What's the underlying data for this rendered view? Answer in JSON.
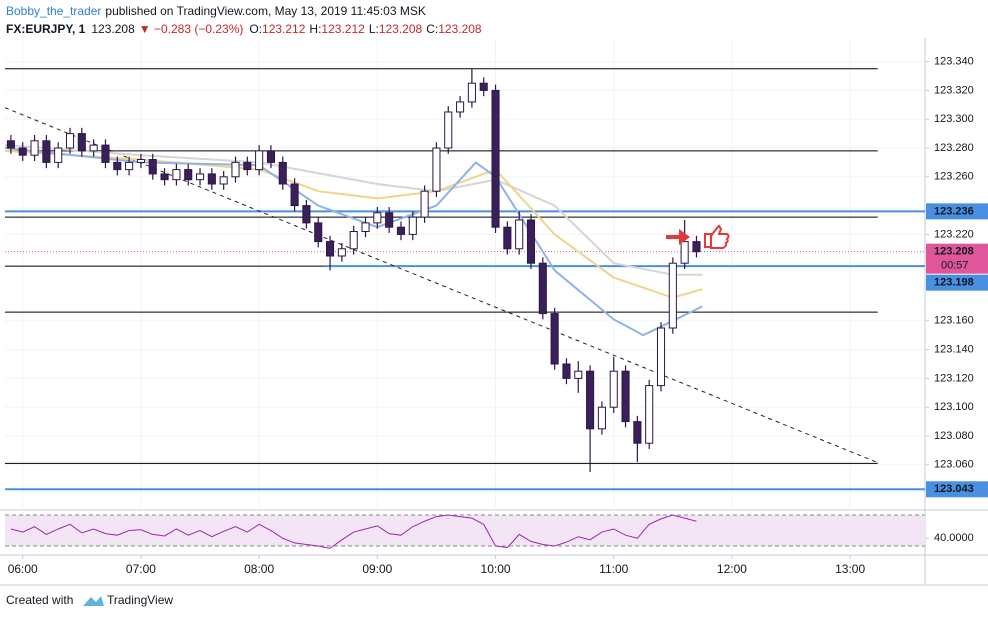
{
  "chart_data": {
    "type": "candlestick",
    "author": "Bobby_the_trader",
    "title": "published on TradingView.com, May 13, 2019 11:45:03 MSK",
    "symbol": "FX:EURJPY, 1",
    "last": 123.208,
    "change": "▼ −0.283 (−0.23%)",
    "ohlc_labels": [
      {
        "label": "O:",
        "value": 123.212
      },
      {
        "label": "H:",
        "value": 123.212
      },
      {
        "label": "L:",
        "value": 123.208
      },
      {
        "label": "C:",
        "value": 123.208
      }
    ],
    "up_color": "#ffffff",
    "down_color": "#3b1f5a",
    "x": [
      354,
      360,
      366,
      372,
      378,
      384,
      390,
      396,
      402,
      408,
      414,
      420,
      426,
      432,
      438,
      444,
      450,
      456,
      462,
      468,
      474,
      480,
      486,
      492,
      498,
      504,
      510,
      516,
      522,
      528,
      534,
      540,
      546,
      552,
      558,
      564,
      570,
      576,
      582,
      588,
      594,
      600,
      606,
      612,
      618,
      624,
      630,
      636,
      642,
      648,
      654,
      660,
      666,
      672,
      678,
      684,
      690,
      696,
      702
    ],
    "open": [
      123.285,
      123.28,
      123.275,
      123.285,
      123.27,
      123.28,
      123.29,
      123.278,
      123.282,
      123.27,
      123.265,
      123.27,
      123.272,
      123.262,
      123.258,
      123.265,
      123.258,
      123.262,
      123.255,
      123.26,
      123.27,
      123.265,
      123.278,
      123.27,
      123.255,
      123.24,
      123.228,
      123.215,
      123.205,
      123.21,
      123.222,
      123.228,
      123.235,
      123.225,
      123.22,
      123.232,
      123.25,
      123.28,
      123.305,
      123.312,
      123.325,
      123.32,
      123.225,
      123.21,
      123.23,
      123.2,
      123.165,
      123.13,
      123.12,
      123.125,
      123.085,
      123.1,
      123.125,
      123.09,
      123.075,
      123.115,
      123.155,
      123.2,
      123.215
    ],
    "high": [
      123.289,
      123.284,
      123.289,
      123.289,
      123.284,
      123.294,
      123.294,
      123.286,
      123.286,
      123.274,
      123.274,
      123.276,
      123.276,
      123.266,
      123.269,
      123.269,
      123.266,
      123.266,
      123.264,
      123.274,
      123.274,
      123.282,
      123.282,
      123.274,
      123.259,
      123.244,
      123.232,
      123.219,
      123.214,
      123.226,
      123.232,
      123.239,
      123.239,
      123.229,
      123.236,
      123.254,
      123.284,
      123.309,
      123.316,
      123.335,
      123.329,
      123.324,
      123.229,
      123.236,
      123.234,
      123.204,
      123.169,
      123.134,
      123.132,
      123.129,
      123.104,
      123.135,
      123.129,
      123.094,
      123.119,
      123.159,
      123.204,
      123.23,
      123.219
    ],
    "low": [
      123.276,
      123.271,
      123.271,
      123.266,
      123.266,
      123.276,
      123.274,
      123.274,
      123.266,
      123.261,
      123.261,
      123.266,
      123.258,
      123.254,
      123.254,
      123.254,
      123.254,
      123.251,
      123.251,
      123.256,
      123.261,
      123.261,
      123.266,
      123.251,
      123.236,
      123.224,
      123.211,
      123.195,
      123.201,
      123.206,
      123.218,
      123.224,
      123.221,
      123.216,
      123.216,
      123.228,
      123.246,
      123.276,
      123.301,
      123.308,
      123.316,
      123.221,
      123.206,
      123.206,
      123.196,
      123.161,
      123.126,
      123.116,
      123.11,
      123.055,
      123.081,
      123.096,
      123.086,
      123.062,
      123.071,
      123.111,
      123.151,
      123.196,
      123.204
    ],
    "close": [
      123.28,
      123.275,
      123.285,
      123.27,
      123.28,
      123.29,
      123.278,
      123.282,
      123.27,
      123.265,
      123.27,
      123.272,
      123.262,
      123.258,
      123.265,
      123.258,
      123.262,
      123.255,
      123.26,
      123.27,
      123.265,
      123.278,
      123.27,
      123.255,
      123.24,
      123.228,
      123.215,
      123.205,
      123.21,
      123.222,
      123.228,
      123.235,
      123.225,
      123.22,
      123.232,
      123.25,
      123.28,
      123.305,
      123.312,
      123.325,
      123.32,
      123.225,
      123.21,
      123.23,
      123.2,
      123.165,
      123.13,
      123.12,
      123.125,
      123.085,
      123.1,
      123.125,
      123.09,
      123.075,
      123.115,
      123.155,
      123.2,
      123.215,
      123.208
    ],
    "xlim": [
      351,
      818
    ],
    "xticks": [
      {
        "value": 360,
        "label": "06:00"
      },
      {
        "value": 420,
        "label": "07:00"
      },
      {
        "value": 480,
        "label": "08:00"
      },
      {
        "value": 540,
        "label": "09:00"
      },
      {
        "value": 600,
        "label": "10:00"
      },
      {
        "value": 660,
        "label": "11:00"
      },
      {
        "value": 720,
        "label": "12:00"
      },
      {
        "value": 780,
        "label": "13:00"
      }
    ],
    "ylim": [
      123.03,
      123.355
    ],
    "yticks": [
      {
        "value": 123.34,
        "label": "123.340"
      },
      {
        "value": 123.32,
        "label": "123.320"
      },
      {
        "value": 123.3,
        "label": "123.300"
      },
      {
        "value": 123.28,
        "label": "123.280"
      },
      {
        "value": 123.26,
        "label": "123.260"
      },
      {
        "value": 123.22,
        "label": "123.220"
      },
      {
        "value": 123.16,
        "label": "123.160"
      },
      {
        "value": 123.14,
        "label": "123.140"
      },
      {
        "value": 123.12,
        "label": "123.120"
      },
      {
        "value": 123.1,
        "label": "123.100"
      },
      {
        "value": 123.08,
        "label": "123.080"
      },
      {
        "value": 123.06,
        "label": "123.060"
      }
    ],
    "moving_averages": [
      {
        "color": "#d5d5d8",
        "x": [
          351,
          420,
          480,
          540,
          570,
          600,
          630,
          660,
          690,
          705
        ],
        "values": [
          123.282,
          123.275,
          123.27,
          123.255,
          123.25,
          123.258,
          123.24,
          123.2,
          123.192,
          123.192
        ]
      },
      {
        "color": "#f2d38a",
        "x": [
          351,
          420,
          480,
          510,
          540,
          570,
          600,
          630,
          660,
          690,
          705
        ],
        "values": [
          123.278,
          123.272,
          123.265,
          123.25,
          123.245,
          123.25,
          123.265,
          123.22,
          123.19,
          123.176,
          123.182
        ]
      },
      {
        "color": "#8fb3e8",
        "x": [
          351,
          420,
          480,
          510,
          540,
          570,
          590,
          600,
          630,
          660,
          675,
          690,
          705
        ],
        "values": [
          123.28,
          123.27,
          123.268,
          123.24,
          123.225,
          123.24,
          123.27,
          123.26,
          123.195,
          123.161,
          123.15,
          123.16,
          123.17
        ]
      }
    ],
    "levels": [
      {
        "value": 123.335,
        "color": "#000000",
        "x_to": 794
      },
      {
        "value": 123.278,
        "color": "#000000",
        "x_to": 794
      },
      {
        "value": 123.232,
        "color": "#000000",
        "x_to": 794
      },
      {
        "value": 123.198,
        "color": "#000000",
        "x_to": 514
      },
      {
        "value": 123.166,
        "color": "#000000",
        "x_to": 794
      },
      {
        "value": 123.061,
        "color": "#000000",
        "x_to": 794
      },
      {
        "value": 123.236,
        "color": "#4a90e2"
      },
      {
        "value": 123.198,
        "color": "#4a90e2",
        "x_from": 514
      },
      {
        "value": 123.043,
        "color": "#4a90e2"
      }
    ],
    "trendline": {
      "x": [
        351,
        794
      ],
      "y": [
        123.308,
        123.0615
      ]
    },
    "price_labels": [
      {
        "value": 123.236,
        "color": "#4a90e2"
      },
      {
        "value": 123.208,
        "color": "#e0569b",
        "countdown": "00:57"
      },
      {
        "value": 123.198,
        "color": "#4a90e2"
      },
      {
        "value": 123.043,
        "color": "#4a90e2"
      }
    ],
    "rsi": {
      "color": "#9c27b0",
      "ylim": [
        22.3,
        73.9
      ],
      "bands": [
        30,
        70
      ],
      "yticks": [
        {
          "value": 40,
          "label": "40.0000"
        }
      ],
      "values": [
        52,
        48,
        55,
        45,
        52,
        58,
        47,
        52,
        46,
        44,
        50,
        51,
        45,
        43,
        52,
        44,
        50,
        42,
        49,
        55,
        48,
        58,
        50,
        40,
        34,
        32,
        30,
        27,
        38,
        48,
        52,
        56,
        46,
        44,
        55,
        62,
        68,
        70,
        68,
        66,
        58,
        30,
        28,
        45,
        36,
        32,
        30,
        35,
        42,
        38,
        48,
        52,
        44,
        40,
        58,
        65,
        70,
        66,
        62
      ]
    },
    "footer": "Created with",
    "brand": "TradingView"
  }
}
